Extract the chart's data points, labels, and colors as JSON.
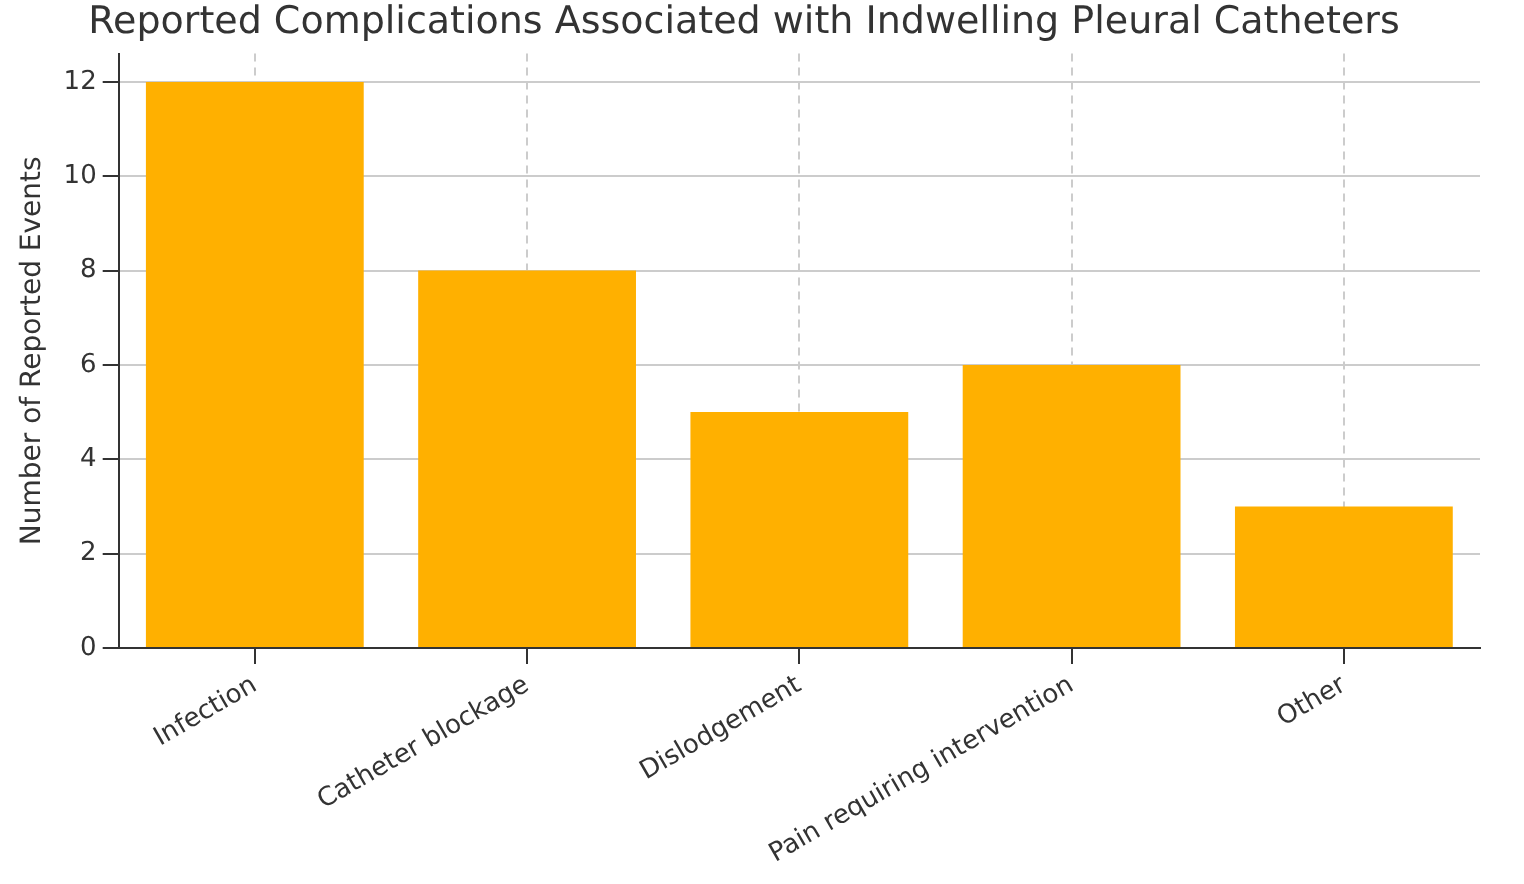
{
  "chart_data": {
    "type": "bar",
    "title": "Reported Complications Associated with Indwelling Pleural Catheters",
    "ylabel": "Number of Reported Events",
    "categories": [
      "Infection",
      "Catheter blockage",
      "Dislodgement",
      "Pain requiring intervention",
      "Other"
    ],
    "values": [
      12,
      8,
      5,
      6,
      3
    ],
    "color": "#ffb000",
    "ylim": [
      0,
      12.6
    ],
    "yticks": [
      0,
      2,
      4,
      6,
      8,
      10,
      12
    ],
    "grid": true
  }
}
